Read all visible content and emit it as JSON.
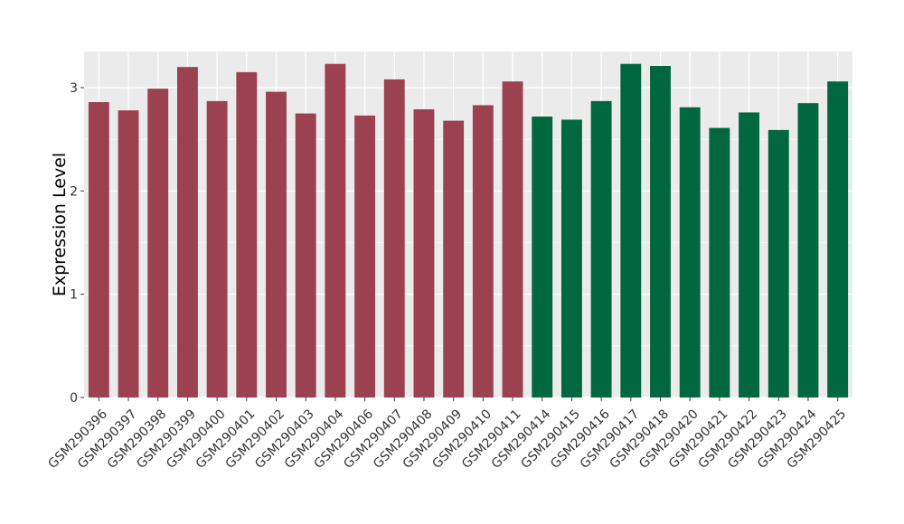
{
  "chart_data": {
    "type": "bar",
    "title": "",
    "xlabel": "",
    "ylabel": "Expression Level",
    "ylim": [
      0,
      3.35
    ],
    "yticks": [
      "0",
      "1",
      "2",
      "3"
    ],
    "grid": true,
    "legend": "none",
    "colors": {
      "group1": "#9b4150",
      "group2": "#006741",
      "panel": "#ebebeb",
      "grid": "#ffffff"
    },
    "categories": [
      "GSM290396",
      "GSM290397",
      "GSM290398",
      "GSM290399",
      "GSM290400",
      "GSM290401",
      "GSM290402",
      "GSM290403",
      "GSM290404",
      "GSM290406",
      "GSM290407",
      "GSM290408",
      "GSM290409",
      "GSM290410",
      "GSM290411",
      "GSM290414",
      "GSM290415",
      "GSM290416",
      "GSM290417",
      "GSM290418",
      "GSM290420",
      "GSM290421",
      "GSM290422",
      "GSM290423",
      "GSM290424",
      "GSM290425"
    ],
    "values": [
      2.86,
      2.78,
      2.99,
      3.2,
      2.87,
      3.15,
      2.96,
      2.75,
      3.23,
      2.73,
      3.08,
      2.79,
      2.68,
      2.83,
      3.06,
      2.72,
      2.69,
      2.87,
      3.23,
      3.21,
      2.81,
      2.61,
      2.76,
      2.59,
      2.85,
      3.06
    ],
    "groups": [
      "group1",
      "group1",
      "group1",
      "group1",
      "group1",
      "group1",
      "group1",
      "group1",
      "group1",
      "group1",
      "group1",
      "group1",
      "group1",
      "group1",
      "group1",
      "group2",
      "group2",
      "group2",
      "group2",
      "group2",
      "group2",
      "group2",
      "group2",
      "group2",
      "group2",
      "group2"
    ]
  }
}
